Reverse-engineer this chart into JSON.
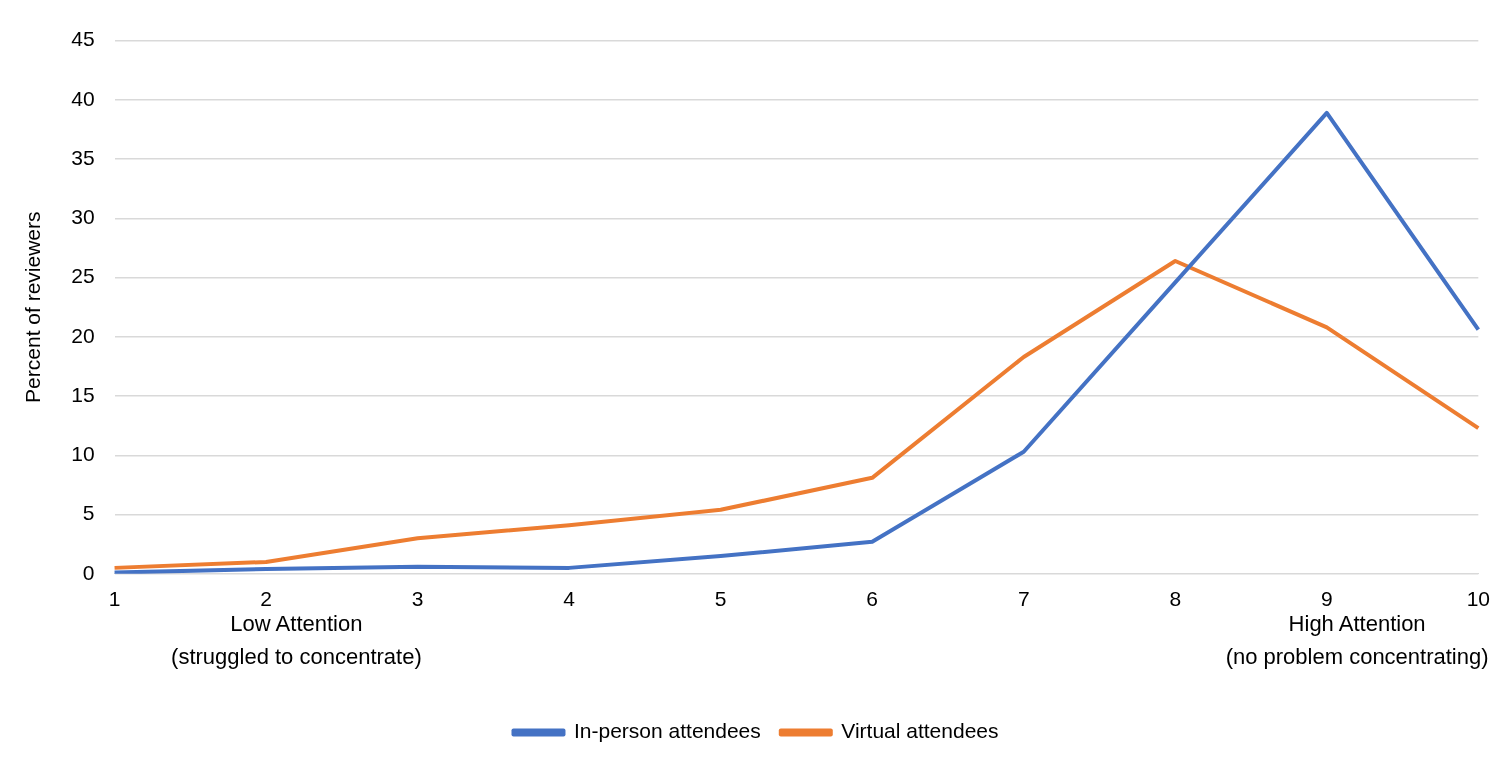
{
  "chart_data": {
    "type": "line",
    "ylabel": "Percent of reviewers",
    "categories": [
      "1",
      "2",
      "3",
      "4",
      "5",
      "6",
      "7",
      "8",
      "9",
      "10"
    ],
    "series": [
      {
        "name": "In-person attendees",
        "color": "#4472c4",
        "values": [
          0.1,
          0.4,
          0.6,
          0.5,
          1.5,
          2.7,
          10.3,
          24.6,
          38.9,
          20.6
        ]
      },
      {
        "name": "Virtual attendees",
        "color": "#ed7d31",
        "values": [
          0.5,
          1.0,
          3.0,
          4.1,
          5.4,
          8.1,
          18.3,
          26.4,
          20.8,
          12.3
        ]
      }
    ],
    "ylim": [
      0,
      45
    ],
    "yticks": [
      0,
      5,
      10,
      15,
      20,
      25,
      30,
      35,
      40,
      45
    ],
    "grid": "y",
    "legend": "bottom",
    "marker": "none",
    "line_style": "solid",
    "annotations": [
      "Low Attention\n(struggled to concentrate)",
      "High Attention\n(no problem concentrating)"
    ]
  }
}
